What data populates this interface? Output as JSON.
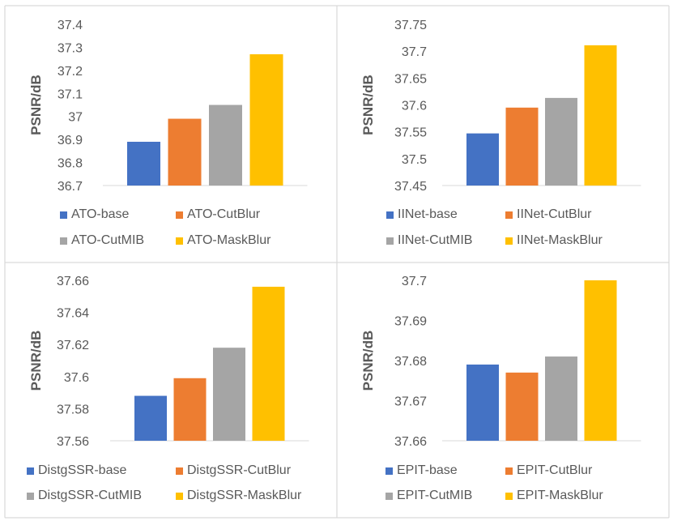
{
  "colors": {
    "base": "#4472c4",
    "cutblur": "#ed7d31",
    "cutmib": "#a5a5a5",
    "maskblur": "#ffc000",
    "gridline": "#d9d9d9",
    "text": "#595959"
  },
  "chart_data": [
    {
      "type": "bar",
      "ylabel": "PSNR/dB",
      "ylim": [
        36.7,
        37.4
      ],
      "yticks": [
        "37.4",
        "37.3",
        "37.2",
        "37.1",
        "37",
        "36.9",
        "36.8",
        "36.7"
      ],
      "series": [
        {
          "name": "ATO-base",
          "value": 36.89,
          "color": "#4472c4"
        },
        {
          "name": "ATO-CutBlur",
          "value": 36.99,
          "color": "#ed7d31"
        },
        {
          "name": "ATO-CutMIB",
          "value": 37.05,
          "color": "#a5a5a5"
        },
        {
          "name": "ATO-MaskBlur",
          "value": 37.27,
          "color": "#ffc000"
        }
      ],
      "legend_position": "bottom",
      "grid": false
    },
    {
      "type": "bar",
      "ylabel": "PSNR/dB",
      "ylim": [
        37.45,
        37.75
      ],
      "yticks": [
        "37.75",
        "37.7",
        "37.65",
        "37.6",
        "37.55",
        "37.5",
        "37.45"
      ],
      "series": [
        {
          "name": "IINet-base",
          "value": 37.547,
          "color": "#4472c4"
        },
        {
          "name": "IINet-CutBlur",
          "value": 37.595,
          "color": "#ed7d31"
        },
        {
          "name": "IINet-CutMIB",
          "value": 37.613,
          "color": "#a5a5a5"
        },
        {
          "name": "IINet-MaskBlur",
          "value": 37.711,
          "color": "#ffc000"
        }
      ],
      "legend_position": "bottom",
      "grid": false
    },
    {
      "type": "bar",
      "ylabel": "PSNR/dB",
      "ylim": [
        37.56,
        37.66
      ],
      "yticks": [
        "37.66",
        "37.64",
        "37.62",
        "37.6",
        "37.58",
        "37.56"
      ],
      "series": [
        {
          "name": "DistgSSR-base",
          "value": 37.588,
          "color": "#4472c4"
        },
        {
          "name": "DistgSSR-CutBlur",
          "value": 37.599,
          "color": "#ed7d31"
        },
        {
          "name": "DistgSSR-CutMIB",
          "value": 37.618,
          "color": "#a5a5a5"
        },
        {
          "name": "DistgSSR-MaskBlur",
          "value": 37.656,
          "color": "#ffc000"
        }
      ],
      "legend_position": "bottom",
      "grid": false
    },
    {
      "type": "bar",
      "ylabel": "PSNR/dB",
      "ylim": [
        37.66,
        37.7
      ],
      "yticks": [
        "37.7",
        "37.69",
        "37.68",
        "37.67",
        "37.66"
      ],
      "series": [
        {
          "name": "EPIT-base",
          "value": 37.679,
          "color": "#4472c4"
        },
        {
          "name": "EPIT-CutBlur",
          "value": 37.677,
          "color": "#ed7d31"
        },
        {
          "name": "EPIT-CutMIB",
          "value": 37.681,
          "color": "#a5a5a5"
        },
        {
          "name": "EPIT-MaskBlur",
          "value": 37.7,
          "color": "#ffc000"
        }
      ],
      "legend_position": "bottom",
      "grid": false
    }
  ]
}
